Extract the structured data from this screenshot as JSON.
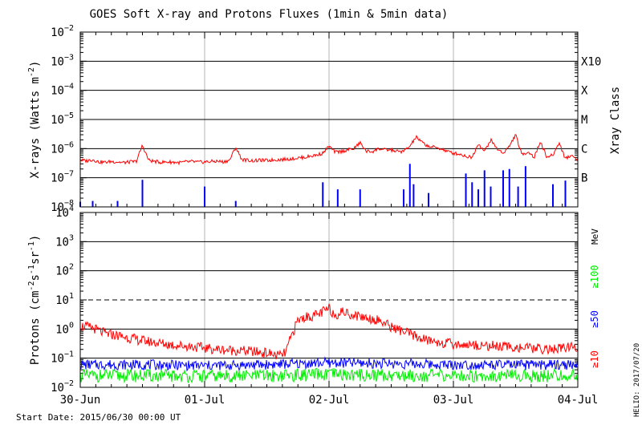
{
  "title": "GOES Soft X-ray and Protons Fluxes   (1min & 5min data)",
  "start_date": "Start Date: 2015/06/30 00:00 UT",
  "credit": "HELIO: 2017/07/20",
  "colors": {
    "red": "#ff0000",
    "blue": "#0000ff",
    "green": "#00ee00",
    "black": "#000000",
    "grid_v": "#b4b4b4"
  },
  "chart_data": [
    {
      "type": "line",
      "title": "GOES Soft X-ray and Protons Fluxes   (1min & 5min data)",
      "ylabel_main": "X-rays (Watts m",
      "ylabel_sup": "-2",
      "ylabel_close": ")",
      "yscale": "log",
      "ylim": [
        1e-08,
        0.01
      ],
      "ytick_exponents": [
        -8,
        -7,
        -6,
        -5,
        -4,
        -3,
        -2
      ],
      "x_categories": [
        "30-Jun",
        "01-Jul",
        "02-Jul",
        "03-Jul",
        "04-Jul"
      ],
      "xlim_days": [
        0,
        4
      ],
      "right_axis_label": "Xray Class",
      "xray_classes": [
        {
          "label": "B",
          "exponent": -7
        },
        {
          "label": "C",
          "exponent": -6
        },
        {
          "label": "M",
          "exponent": -5
        },
        {
          "label": "X",
          "exponent": -4
        },
        {
          "label": "X10",
          "exponent": -3
        }
      ],
      "series": [
        {
          "color": "#ff0000",
          "x_days": [
            0,
            0.05,
            0.1,
            0.15,
            0.2,
            0.25,
            0.3,
            0.35,
            0.4,
            0.45,
            0.5,
            0.55,
            0.6,
            0.65,
            0.7,
            0.75,
            0.8,
            0.85,
            0.9,
            0.95,
            1.0,
            1.05,
            1.1,
            1.15,
            1.2,
            1.25,
            1.3,
            1.35,
            1.4,
            1.45,
            1.5,
            1.55,
            1.6,
            1.65,
            1.7,
            1.75,
            1.8,
            1.85,
            1.9,
            1.95,
            2.0,
            2.05,
            2.1,
            2.15,
            2.2,
            2.25,
            2.3,
            2.35,
            2.4,
            2.45,
            2.5,
            2.55,
            2.6,
            2.65,
            2.7,
            2.75,
            2.8,
            2.85,
            2.9,
            2.95,
            3.0,
            3.05,
            3.1,
            3.15,
            3.2,
            3.25,
            3.3,
            3.35,
            3.4,
            3.45,
            3.5,
            3.55,
            3.6,
            3.65,
            3.7,
            3.75,
            3.8,
            3.85,
            3.9,
            3.95,
            4.0
          ],
          "flux": [
            4e-07,
            3.8e-07,
            4.2e-07,
            3.5e-07,
            3.4e-07,
            3.6e-07,
            3.5e-07,
            3.3e-07,
            3.5e-07,
            3.6e-07,
            1.3e-06,
            4e-07,
            3.6e-07,
            3.4e-07,
            3.5e-07,
            3.4e-07,
            3.3e-07,
            3.5e-07,
            3.6e-07,
            3.4e-07,
            3.5e-07,
            3.6e-07,
            3.7e-07,
            3.5e-07,
            4e-07,
            1.1e-06,
            4.2e-07,
            4e-07,
            3.8e-07,
            4e-07,
            3.9e-07,
            4.1e-07,
            4.2e-07,
            4.3e-07,
            4.5e-07,
            4.8e-07,
            5e-07,
            5.5e-07,
            6e-07,
            7e-07,
            1.2e-06,
            7.5e-07,
            8e-07,
            9e-07,
            1e-06,
            1.6e-06,
            8e-07,
            8e-07,
            1e-06,
            9e-07,
            9e-07,
            8e-07,
            8e-07,
            1.2e-06,
            2.5e-06,
            1.6e-06,
            1.2e-06,
            1.1e-06,
            1e-06,
            8e-07,
            7e-07,
            6.5e-07,
            5.5e-07,
            5e-07,
            1.5e-06,
            8e-07,
            2e-06,
            1e-06,
            7e-07,
            1.2e-06,
            3e-06,
            6e-07,
            8e-07,
            5e-07,
            1.8e-06,
            5e-07,
            6e-07,
            1.6e-06,
            4.5e-07,
            6e-07,
            4e-07
          ]
        },
        {
          "color": "#0000ff",
          "x_days": [
            0,
            0.1,
            0.3,
            0.5,
            1.0,
            1.25,
            1.95,
            2.07,
            2.25,
            2.6,
            2.65,
            2.68,
            2.8,
            2.95,
            3.1,
            3.15,
            3.2,
            3.25,
            3.3,
            3.4,
            3.45,
            3.52,
            3.58,
            3.8,
            3.9
          ],
          "flux": [
            1.5e-08,
            1.6e-08,
            1.6e-08,
            8.5e-08,
            5e-08,
            1.6e-08,
            7e-08,
            4e-08,
            4e-08,
            4e-08,
            3e-07,
            6e-08,
            3e-08,
            1e-08,
            1.4e-07,
            7e-08,
            4e-08,
            1.8e-07,
            5e-08,
            1.8e-07,
            2e-07,
            5e-08,
            2.5e-07,
            6e-08,
            8e-08
          ]
        }
      ]
    },
    {
      "type": "line",
      "ylabel_main": "Protons (cm",
      "ylabel_sup": "-2",
      "ylabel_s": "s",
      "ylabel_sup2": "-1",
      "ylabel_sr": "sr",
      "ylabel_sup3": "-1",
      "ylabel_close": ")",
      "yscale": "log",
      "ylim": [
        0.01,
        10000
      ],
      "ytick_labels": [
        "10⁻²",
        "10⁻¹",
        "10⁰",
        "10¹",
        "10²",
        "10³",
        "10⁴"
      ],
      "ytick_exponents": [
        -2,
        -1,
        0,
        1,
        2,
        3,
        4
      ],
      "threshold_dashed": 10,
      "x_categories": [
        "30-Jun",
        "01-Jul",
        "02-Jul",
        "03-Jul",
        "04-Jul"
      ],
      "right_axis_unit": "MeV",
      "legend": [
        "≥10",
        "≥50",
        "≥100"
      ],
      "series": [
        {
          "name": "≥10",
          "color": "#ff0000",
          "x_days": [
            0,
            0.1,
            0.2,
            0.3,
            0.5,
            0.7,
            0.9,
            1.1,
            1.3,
            1.5,
            1.6,
            1.65,
            1.7,
            1.75,
            1.8,
            1.9,
            2.0,
            2.05,
            2.1,
            2.2,
            2.3,
            2.4,
            2.5,
            2.6,
            2.7,
            2.8,
            3.0,
            3.2,
            3.4,
            3.6,
            3.8,
            4.0
          ],
          "flux": [
            1.3,
            1.1,
            0.7,
            0.6,
            0.4,
            0.3,
            0.25,
            0.2,
            0.18,
            0.15,
            0.12,
            0.15,
            0.6,
            2.0,
            2.5,
            3.0,
            5.0,
            3.0,
            4.0,
            3.0,
            2.5,
            2.0,
            1.2,
            0.8,
            0.55,
            0.4,
            0.3,
            0.28,
            0.25,
            0.22,
            0.2,
            0.25
          ]
        },
        {
          "name": "≥50",
          "color": "#0000ff",
          "x_days": [
            0,
            0.5,
            1.0,
            1.5,
            2.0,
            2.5,
            3.0,
            3.5,
            4.0
          ],
          "flux": [
            0.06,
            0.06,
            0.055,
            0.06,
            0.07,
            0.065,
            0.06,
            0.058,
            0.06
          ]
        },
        {
          "name": "≥100",
          "color": "#00ee00",
          "x_days": [
            0,
            0.5,
            1.0,
            1.5,
            2.0,
            2.5,
            3.0,
            3.5,
            4.0
          ],
          "flux": [
            0.025,
            0.025,
            0.024,
            0.025,
            0.027,
            0.026,
            0.025,
            0.025,
            0.025
          ]
        }
      ]
    }
  ]
}
